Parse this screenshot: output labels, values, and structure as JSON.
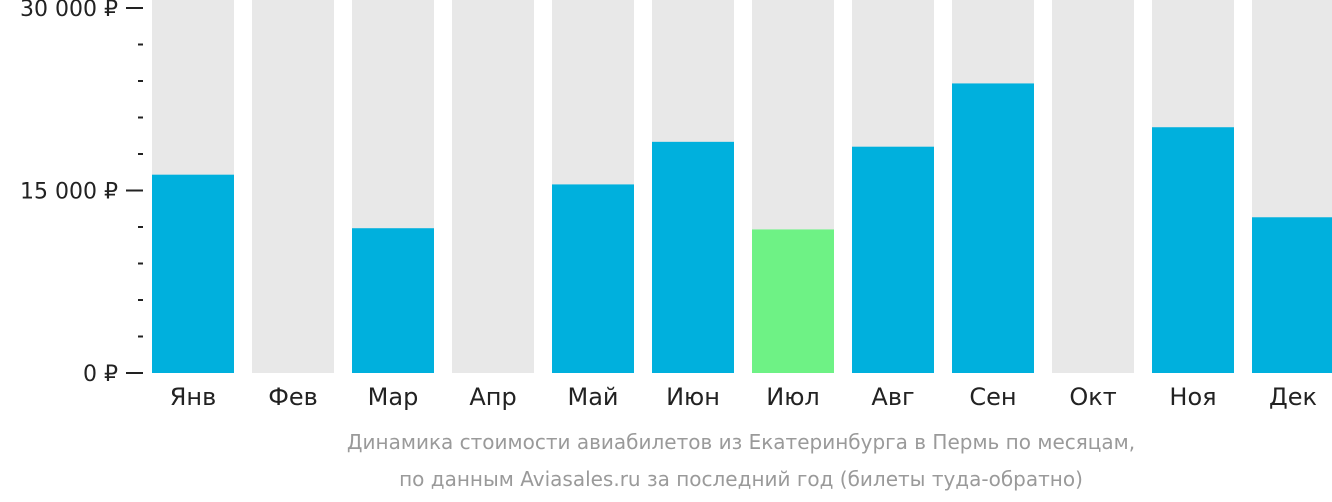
{
  "chart_data": {
    "type": "bar",
    "categories": [
      "Янв",
      "Фев",
      "Мар",
      "Апр",
      "Май",
      "Июн",
      "Июл",
      "Авг",
      "Сен",
      "Окт",
      "Ноя",
      "Дек"
    ],
    "values": [
      16300,
      null,
      11900,
      null,
      15500,
      19000,
      11800,
      18600,
      23800,
      null,
      20200,
      12800
    ],
    "highlight_index": 6,
    "ylim": [
      0,
      30000
    ],
    "yticks": [
      0,
      15000,
      30000
    ],
    "ytick_labels": [
      "0 ₽",
      "15 000 ₽",
      "30 000 ₽"
    ],
    "minor_ticks_per_interval": 4,
    "colors": {
      "bar": "#00b0dd",
      "highlight": "#6ef285",
      "background_column": "#e8e8e8",
      "axis": "#222222"
    }
  },
  "caption": {
    "line1": "Динамика стоимости авиабилетов из Екатеринбурга в Пермь по месяцам,",
    "line2": "по данным Aviasales.ru за последний год (билеты туда-обратно)"
  }
}
